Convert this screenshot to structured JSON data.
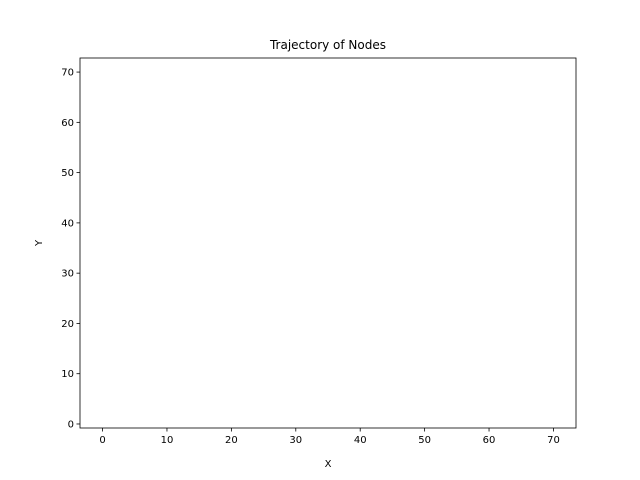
{
  "chart_data": {
    "type": "line",
    "title": "Trajectory of Nodes",
    "xlabel": "X",
    "ylabel": "Y",
    "xlim": [
      -3.5,
      73.5
    ],
    "ylim": [
      -0.8,
      72.8
    ],
    "xticks": [
      0,
      10,
      20,
      30,
      40,
      50,
      60,
      70
    ],
    "yticks": [
      0,
      10,
      20,
      30,
      40,
      50,
      60,
      70
    ],
    "grid": false,
    "series": []
  }
}
